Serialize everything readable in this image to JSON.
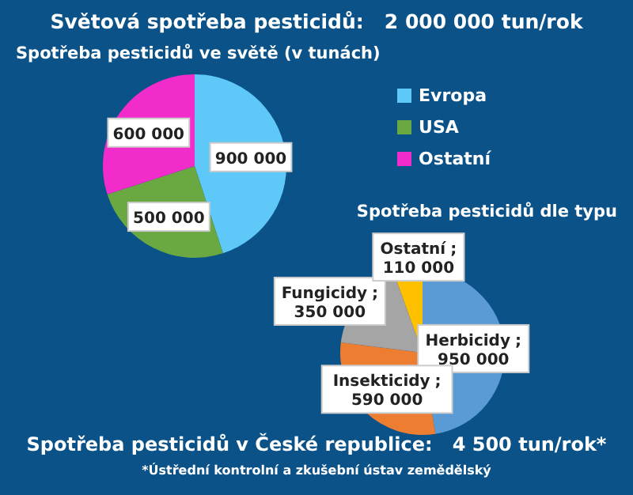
{
  "chart_data": [
    {
      "type": "pie",
      "title": "Spotřeba pesticidů ve světě (v tunách)",
      "annotations": [
        "Světová spotřeba pesticidů:   2 000 000 tun/rok"
      ],
      "categories": [
        "Evropa",
        "USA",
        "Ostatní"
      ],
      "values": [
        900000,
        500000,
        600000
      ],
      "colors": [
        "#5ec8f8",
        "#6aa842",
        "#f22ccb"
      ],
      "value_labels": [
        "900 000",
        "500 000",
        "600 000"
      ],
      "legend": "right"
    },
    {
      "type": "pie",
      "title": "Spotřeba pesticidů dle typu",
      "annotations": [
        "Spotřeba pesticidů v České republice:   4 500 tun/rok*",
        "*Ústřední kontrolní a zkušební ústav zemědělský"
      ],
      "categories": [
        "Herbicidy",
        "Insekticidy",
        "Fungicidy",
        "Ostatní"
      ],
      "values": [
        950000,
        590000,
        350000,
        110000
      ],
      "colors": [
        "#5b9bd5",
        "#ed7d31",
        "#a5a5a5",
        "#ffc000"
      ],
      "value_labels": [
        "; 950 000",
        "; 590 000",
        "; 350 000",
        "; 110 000"
      ]
    }
  ]
}
